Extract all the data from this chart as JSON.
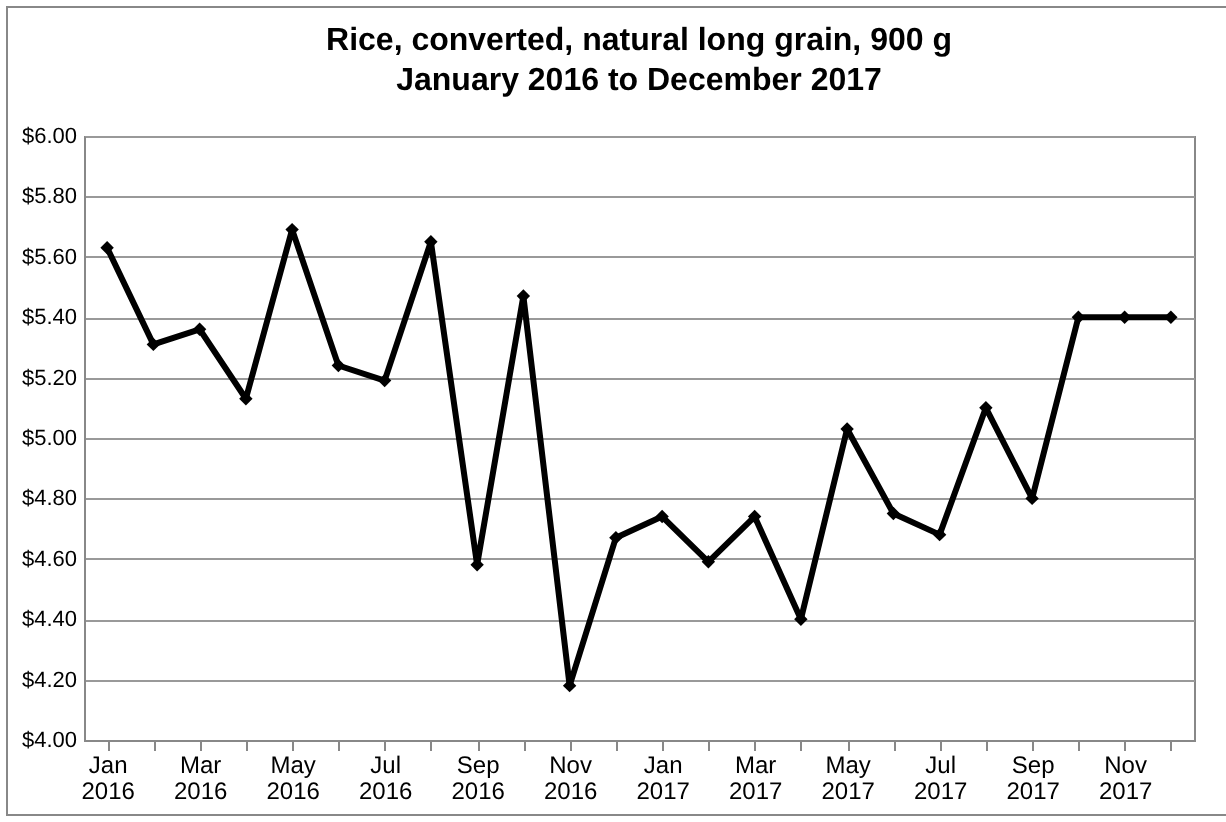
{
  "chart_data": {
    "type": "line",
    "title": [
      "Rice, converted, natural long grain, 900 g",
      "January 2016 to December 2017"
    ],
    "categories": [
      "Jan 2016",
      null,
      "Mar 2016",
      null,
      "May 2016",
      null,
      "Jul 2016",
      null,
      "Sep 2016",
      null,
      "Nov 2016",
      null,
      "Jan 2017",
      null,
      "Mar 2017",
      null,
      "May 2017",
      null,
      "Jul 2017",
      null,
      "Sep 2017",
      null,
      "Nov 2017",
      null
    ],
    "series": [
      {
        "color": "#000000",
        "values": [
          5.63,
          5.31,
          5.36,
          5.13,
          5.69,
          5.24,
          5.19,
          5.65,
          4.58,
          5.47,
          4.18,
          4.67,
          4.74,
          4.59,
          4.74,
          4.4,
          5.03,
          4.75,
          4.68,
          5.1,
          4.8,
          5.4,
          5.4,
          5.4
        ]
      }
    ],
    "ylim": [
      4,
      6
    ],
    "yticks": [
      {
        "value": 4,
        "label": "$4.00"
      },
      {
        "value": 4.2,
        "label": "$4.20"
      },
      {
        "value": 4.4,
        "label": "$4.40"
      },
      {
        "value": 4.6,
        "label": "$4.60"
      },
      {
        "value": 4.8,
        "label": "$4.80"
      },
      {
        "value": 5,
        "label": "$5.00"
      },
      {
        "value": 5.2,
        "label": "$5.20"
      },
      {
        "value": 5.4,
        "label": "$5.40"
      },
      {
        "value": 5.6,
        "label": "$5.60"
      },
      {
        "value": 5.8,
        "label": "$5.80"
      },
      {
        "value": 6,
        "label": "$6.00"
      }
    ],
    "grid": "y",
    "marker": "diamond",
    "line_style": "solid"
  }
}
